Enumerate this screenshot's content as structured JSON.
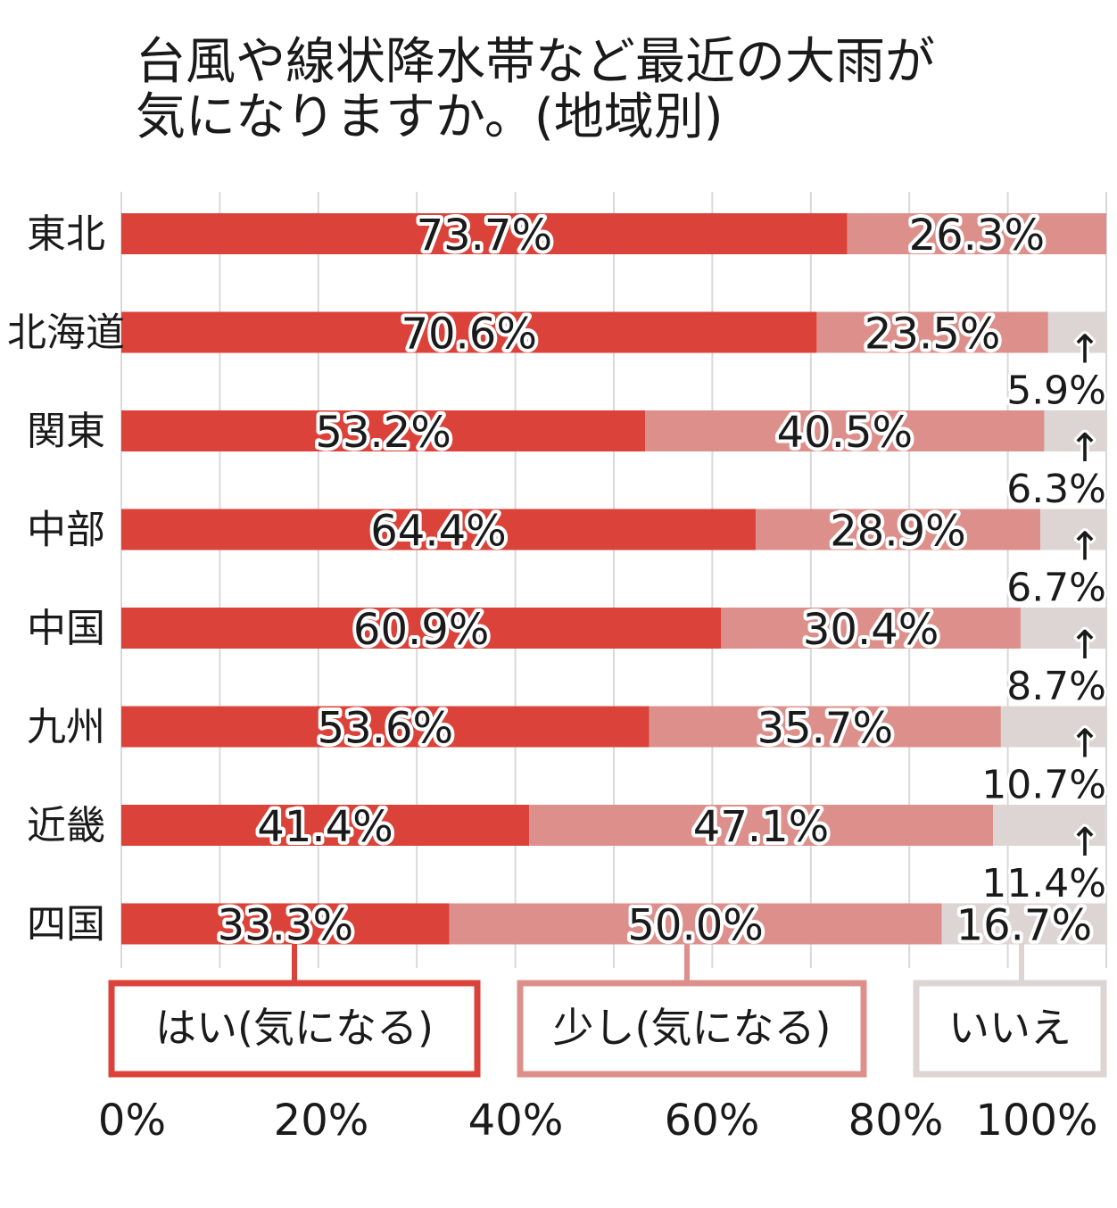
{
  "title_lines": [
    "台風や線状降水帯など最近の大雨が",
    "気になりますか。(地域別)"
  ],
  "colors": {
    "yes": "#db4239",
    "somewhat": "#dd908b",
    "no": "#ddd5d3",
    "grid": "#d9d9d9",
    "text": "#1a1a1a"
  },
  "chart_data": {
    "type": "bar",
    "orientation": "horizontal",
    "stacked": true,
    "title": "台風や線状降水帯など最近の大雨が気になりますか。(地域別)",
    "categories": [
      "東北",
      "北海道",
      "関東",
      "中部",
      "中国",
      "九州",
      "近畿",
      "四国"
    ],
    "series": [
      {
        "name": "はい(気になる)",
        "color": "#db4239",
        "values": [
          73.7,
          70.6,
          53.2,
          64.4,
          60.9,
          53.6,
          41.4,
          33.3
        ],
        "labels": [
          "73.7%",
          "70.6%",
          "53.2%",
          "64.4%",
          "60.9%",
          "53.6%",
          "41.4%",
          "33.3%"
        ]
      },
      {
        "name": "少し(気になる)",
        "color": "#dd908b",
        "values": [
          26.3,
          23.5,
          40.5,
          28.9,
          30.4,
          35.7,
          47.1,
          50.0
        ],
        "labels": [
          "26.3%",
          "23.5%",
          "40.5%",
          "28.9%",
          "30.4%",
          "35.7%",
          "47.1%",
          "50.0%"
        ]
      },
      {
        "name": "いいえ",
        "color": "#ddd5d3",
        "values": [
          0,
          5.9,
          6.3,
          6.7,
          8.7,
          10.7,
          11.4,
          16.7
        ],
        "labels": [
          "",
          "5.9%",
          "6.3%",
          "6.7%",
          "8.7%",
          "10.7%",
          "11.4%",
          "16.7%"
        ]
      }
    ],
    "xlim": [
      0,
      100
    ],
    "x_ticks": [
      "0%",
      "20%",
      "40%",
      "60%",
      "80%",
      "100%"
    ],
    "grid": true,
    "legend_position": "bottom",
    "arrow_glyph": "↑"
  }
}
